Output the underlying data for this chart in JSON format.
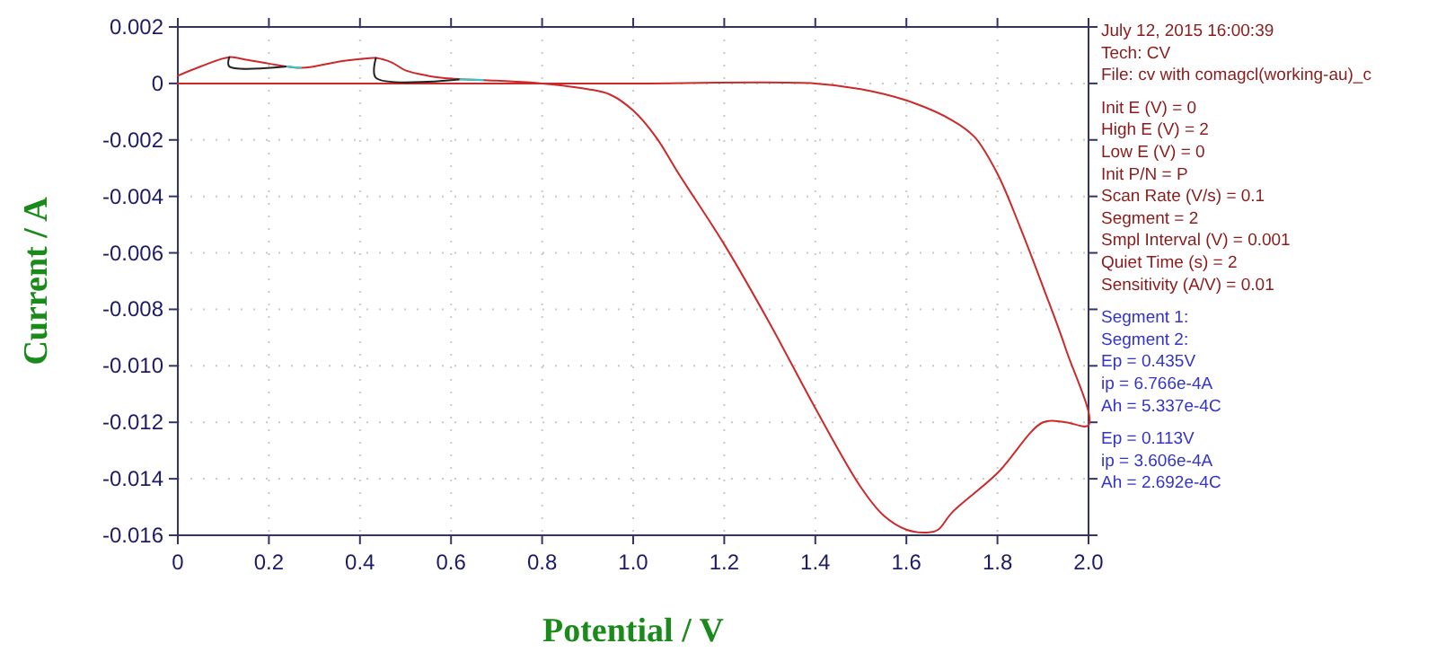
{
  "chart_data": {
    "type": "line",
    "xlabel": "Potential / V",
    "ylabel": "Current / A",
    "xlim": [
      0,
      2
    ],
    "ylim": [
      -0.016,
      0.002
    ],
    "xticks": [
      0,
      0.2,
      0.4,
      0.6,
      0.8,
      {
        "value": 1,
        "label": "1.0"
      },
      1.2,
      1.4,
      1.6,
      1.8,
      {
        "value": 2,
        "label": "2.0"
      }
    ],
    "yticks": [
      0.002,
      0,
      -0.002,
      -0.004,
      -0.006,
      -0.008,
      {
        "value": -0.01,
        "label": "-0.010"
      },
      -0.012,
      -0.014,
      -0.016
    ],
    "grid": true,
    "marker": "none",
    "line_style": "solid",
    "series": [
      {
        "color": "#cc2a2a",
        "x": [
          0,
          0.05,
          0.113,
          0.15,
          0.2,
          0.27,
          0.3,
          0.35,
          0.4,
          0.435,
          0.47,
          0.5,
          0.55,
          0.6,
          0.7,
          0.8,
          0.9,
          0.95,
          1.0,
          1.05,
          1.1,
          1.2,
          1.3,
          1.4,
          1.5,
          1.55,
          1.6,
          1.65,
          1.67,
          1.7,
          1.8,
          1.9,
          1.95,
          2.0,
          1.95,
          1.9,
          1.85,
          1.8,
          1.75,
          1.7,
          1.6,
          1.5,
          1.4,
          1.0,
          0.5,
          0
        ],
        "values": [
          0.00027,
          0.0006,
          0.00093,
          0.00084,
          0.0007,
          0.00055,
          0.0006,
          0.00076,
          0.00086,
          0.0009,
          0.00074,
          0.00046,
          0.00027,
          0.00017,
          0.0001,
          0,
          -0.0002,
          -0.0004,
          -0.00096,
          -0.0019,
          -0.0032,
          -0.0057,
          -0.0085,
          -0.0115,
          -0.0143,
          -0.0153,
          -0.0158,
          -0.0159,
          -0.0158,
          -0.0152,
          -0.0138,
          -0.012,
          -0.012,
          -0.0121,
          -0.0094,
          -0.0072,
          -0.0051,
          -0.0032,
          -0.0019,
          -0.0013,
          -0.0006,
          -0.0002,
          0,
          0,
          0,
          0
        ]
      },
      {
        "color": "#222222",
        "x": [
          0.113,
          0.113,
          0.24
        ],
        "values": [
          0.00093,
          0.0006,
          0.0006
        ]
      },
      {
        "color": "#222222",
        "x": [
          0.435,
          0.435,
          0.62
        ],
        "values": [
          0.0009,
          0.0002,
          0.00015
        ]
      },
      {
        "color": "#33cccc",
        "x": [
          0.24,
          0.27
        ],
        "values": [
          0.0006,
          0.00055
        ]
      },
      {
        "color": "#33cccc",
        "x": [
          0.62,
          0.67
        ],
        "values": [
          0.00015,
          0.00012
        ]
      }
    ],
    "annotations": [
      "July 12, 2015   16:00:39",
      "Tech: CV",
      "File: cv with comagcl(working-au)_c",
      "Init E (V) = 0",
      "High E (V) = 2",
      "Low E (V) = 0",
      "Init P/N = P",
      "Scan Rate (V/s) = 0.1",
      "Segment = 2",
      "Smpl Interval (V) = 0.001",
      "Quiet Time (s) = 2",
      "Sensitivity (A/V) = 0.01",
      "Segment 1:",
      "Segment 2:",
      "Ep = 0.435V",
      "ip = 6.766e-4A",
      "Ah = 5.337e-4C",
      "Ep = 0.113V",
      "ip = 3.606e-4A",
      "Ah = 2.692e-4C"
    ]
  }
}
